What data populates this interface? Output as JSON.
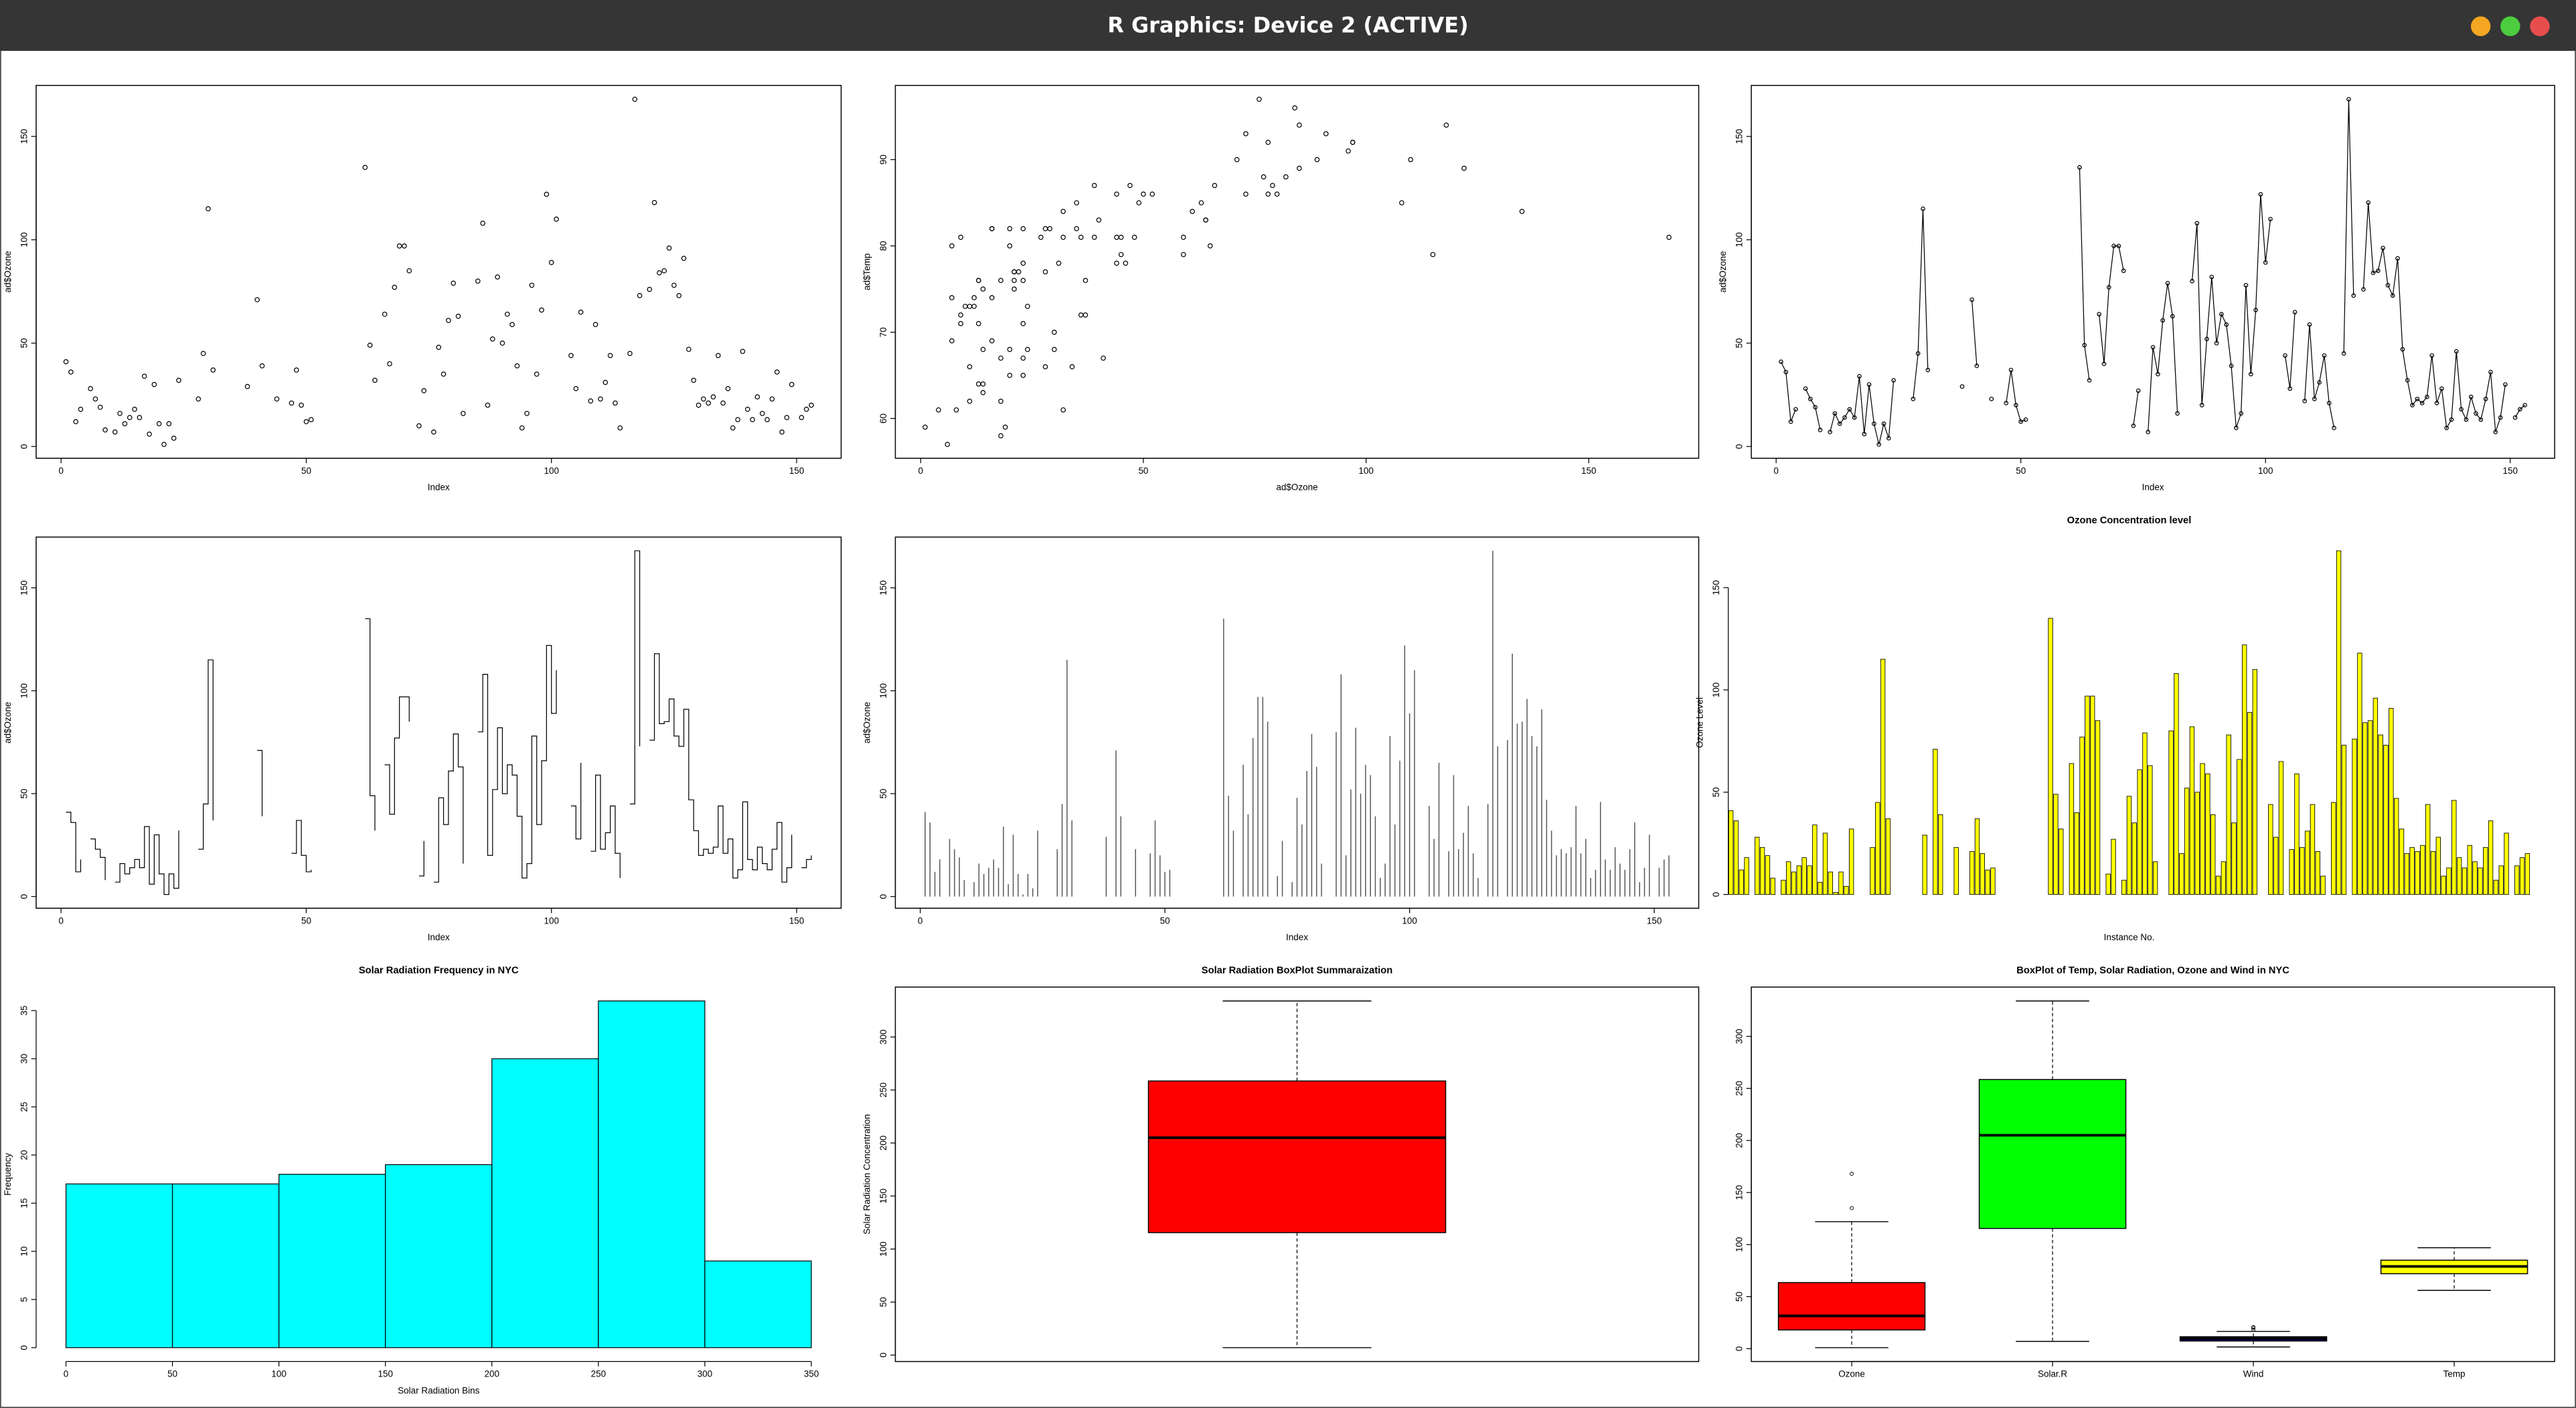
{
  "window": {
    "title": "R Graphics: Device 2 (ACTIVE)"
  },
  "chart_data": [
    {
      "type": "scatter",
      "xlabel": "Index",
      "ylabel": "ad$Ozone",
      "color": "#000000",
      "values": [
        41,
        36,
        12,
        18,
        null,
        28,
        23,
        19,
        8,
        null,
        7,
        16,
        11,
        14,
        18,
        14,
        34,
        6,
        30,
        11,
        1,
        11,
        4,
        32,
        null,
        null,
        null,
        23,
        45,
        115,
        37,
        null,
        null,
        null,
        null,
        null,
        null,
        29,
        null,
        71,
        39,
        null,
        null,
        23,
        null,
        null,
        21,
        37,
        20,
        12,
        13,
        null,
        null,
        null,
        null,
        null,
        null,
        null,
        null,
        null,
        null,
        135,
        49,
        32,
        null,
        64,
        40,
        77,
        97,
        97,
        85,
        null,
        10,
        27,
        null,
        7,
        48,
        35,
        61,
        79,
        63,
        16,
        null,
        null,
        80,
        108,
        20,
        52,
        82,
        50,
        64,
        59,
        39,
        9,
        16,
        78,
        35,
        66,
        122,
        89,
        110,
        null,
        null,
        44,
        28,
        65,
        null,
        22,
        59,
        23,
        31,
        44,
        21,
        9,
        null,
        45,
        168,
        73,
        null,
        76,
        118,
        84,
        85,
        96,
        78,
        73,
        91,
        47,
        32,
        20,
        23,
        21,
        24,
        44,
        21,
        28,
        9,
        13,
        46,
        18,
        13,
        24,
        16,
        13,
        23,
        36,
        7,
        14,
        30,
        null,
        14,
        18,
        20
      ],
      "xlim": [
        -5.08,
        159.08
      ],
      "ylim": [
        -5.68,
        174.68
      ],
      "xticks": [
        0,
        50,
        100,
        150
      ],
      "yticks": [
        0,
        50,
        100,
        150
      ]
    },
    {
      "type": "scatter",
      "xlabel": "ad$Ozone",
      "ylabel": "ad$Temp",
      "color": "#000000",
      "x": [
        41,
        36,
        12,
        18,
        28,
        23,
        19,
        8,
        7,
        16,
        11,
        14,
        18,
        14,
        34,
        6,
        30,
        11,
        1,
        11,
        4,
        32,
        23,
        45,
        115,
        37,
        29,
        71,
        39,
        23,
        21,
        37,
        20,
        12,
        13,
        135,
        49,
        32,
        64,
        40,
        77,
        97,
        97,
        85,
        10,
        27,
        7,
        48,
        35,
        61,
        79,
        63,
        16,
        80,
        108,
        20,
        52,
        82,
        50,
        64,
        59,
        39,
        9,
        16,
        78,
        35,
        66,
        122,
        89,
        110,
        44,
        28,
        65,
        22,
        59,
        23,
        31,
        44,
        21,
        9,
        45,
        168,
        73,
        76,
        118,
        84,
        85,
        96,
        78,
        73,
        91,
        47,
        32,
        20,
        23,
        21,
        24,
        44,
        21,
        28,
        9,
        13,
        46,
        18,
        13,
        24,
        16,
        13,
        23,
        36,
        7,
        14,
        30,
        14,
        18,
        20
      ],
      "values": [
        67,
        72,
        74,
        62,
        66,
        65,
        59,
        61,
        74,
        69,
        66,
        68,
        58,
        64,
        66,
        57,
        68,
        62,
        59,
        73,
        61,
        61,
        67,
        81,
        79,
        76,
        82,
        90,
        87,
        82,
        77,
        72,
        65,
        73,
        76,
        84,
        85,
        81,
        83,
        83,
        88,
        92,
        92,
        89,
        73,
        81,
        80,
        81,
        82,
        84,
        87,
        85,
        74,
        86,
        85,
        82,
        86,
        88,
        86,
        83,
        81,
        81,
        81,
        82,
        86,
        85,
        87,
        89,
        90,
        90,
        86,
        82,
        80,
        77,
        79,
        76,
        78,
        78,
        77,
        72,
        79,
        81,
        86,
        97,
        94,
        96,
        94,
        91,
        92,
        93,
        93,
        87,
        84,
        80,
        78,
        75,
        73,
        81,
        76,
        77,
        71,
        71,
        78,
        67,
        76,
        68,
        82,
        64,
        71,
        81,
        69,
        63,
        70,
        75,
        76,
        68
      ],
      "xlim": [
        -5.68,
        174.68
      ],
      "ylim": [
        55.4,
        98.6
      ],
      "xticks": [
        0,
        50,
        100,
        150
      ],
      "yticks": [
        60,
        70,
        80,
        90
      ]
    },
    {
      "type": "line",
      "markers": true,
      "xlabel": "Index",
      "ylabel": "ad$Ozone",
      "color": "#000000",
      "values": [
        41,
        36,
        12,
        18,
        null,
        28,
        23,
        19,
        8,
        null,
        7,
        16,
        11,
        14,
        18,
        14,
        34,
        6,
        30,
        11,
        1,
        11,
        4,
        32,
        null,
        null,
        null,
        23,
        45,
        115,
        37,
        null,
        null,
        null,
        null,
        null,
        null,
        29,
        null,
        71,
        39,
        null,
        null,
        23,
        null,
        null,
        21,
        37,
        20,
        12,
        13,
        null,
        null,
        null,
        null,
        null,
        null,
        null,
        null,
        null,
        null,
        135,
        49,
        32,
        null,
        64,
        40,
        77,
        97,
        97,
        85,
        null,
        10,
        27,
        null,
        7,
        48,
        35,
        61,
        79,
        63,
        16,
        null,
        null,
        80,
        108,
        20,
        52,
        82,
        50,
        64,
        59,
        39,
        9,
        16,
        78,
        35,
        66,
        122,
        89,
        110,
        null,
        null,
        44,
        28,
        65,
        null,
        22,
        59,
        23,
        31,
        44,
        21,
        9,
        null,
        45,
        168,
        73,
        null,
        76,
        118,
        84,
        85,
        96,
        78,
        73,
        91,
        47,
        32,
        20,
        23,
        21,
        24,
        44,
        21,
        28,
        9,
        13,
        46,
        18,
        13,
        24,
        16,
        13,
        23,
        36,
        7,
        14,
        30,
        null,
        14,
        18,
        20
      ],
      "xlim": [
        -5.08,
        159.08
      ],
      "ylim": [
        -5.68,
        174.68
      ],
      "xticks": [
        0,
        50,
        100,
        150
      ],
      "yticks": [
        0,
        50,
        100,
        150
      ]
    },
    {
      "type": "step",
      "xlabel": "Index",
      "ylabel": "ad$Ozone",
      "color": "#000000",
      "values": [
        41,
        36,
        12,
        18,
        null,
        28,
        23,
        19,
        8,
        null,
        7,
        16,
        11,
        14,
        18,
        14,
        34,
        6,
        30,
        11,
        1,
        11,
        4,
        32,
        null,
        null,
        null,
        23,
        45,
        115,
        37,
        null,
        null,
        null,
        null,
        null,
        null,
        29,
        null,
        71,
        39,
        null,
        null,
        23,
        null,
        null,
        21,
        37,
        20,
        12,
        13,
        null,
        null,
        null,
        null,
        null,
        null,
        null,
        null,
        null,
        null,
        135,
        49,
        32,
        null,
        64,
        40,
        77,
        97,
        97,
        85,
        null,
        10,
        27,
        null,
        7,
        48,
        35,
        61,
        79,
        63,
        16,
        null,
        null,
        80,
        108,
        20,
        52,
        82,
        50,
        64,
        59,
        39,
        9,
        16,
        78,
        35,
        66,
        122,
        89,
        110,
        null,
        null,
        44,
        28,
        65,
        null,
        22,
        59,
        23,
        31,
        44,
        21,
        9,
        null,
        45,
        168,
        73,
        null,
        76,
        118,
        84,
        85,
        96,
        78,
        73,
        91,
        47,
        32,
        20,
        23,
        21,
        24,
        44,
        21,
        28,
        9,
        13,
        46,
        18,
        13,
        24,
        16,
        13,
        23,
        36,
        7,
        14,
        30,
        null,
        14,
        18,
        20
      ],
      "xlim": [
        -5.08,
        159.08
      ],
      "ylim": [
        -5.68,
        174.68
      ],
      "xticks": [
        0,
        50,
        100,
        150
      ],
      "yticks": [
        0,
        50,
        100,
        150
      ]
    },
    {
      "type": "stem",
      "xlabel": "Index",
      "ylabel": "ad$Ozone",
      "color": "#555555",
      "values": [
        41,
        36,
        12,
        18,
        null,
        28,
        23,
        19,
        8,
        null,
        7,
        16,
        11,
        14,
        18,
        14,
        34,
        6,
        30,
        11,
        1,
        11,
        4,
        32,
        null,
        null,
        null,
        23,
        45,
        115,
        37,
        null,
        null,
        null,
        null,
        null,
        null,
        29,
        null,
        71,
        39,
        null,
        null,
        23,
        null,
        null,
        21,
        37,
        20,
        12,
        13,
        null,
        null,
        null,
        null,
        null,
        null,
        null,
        null,
        null,
        null,
        135,
        49,
        32,
        null,
        64,
        40,
        77,
        97,
        97,
        85,
        null,
        10,
        27,
        null,
        7,
        48,
        35,
        61,
        79,
        63,
        16,
        null,
        null,
        80,
        108,
        20,
        52,
        82,
        50,
        64,
        59,
        39,
        9,
        16,
        78,
        35,
        66,
        122,
        89,
        110,
        null,
        null,
        44,
        28,
        65,
        null,
        22,
        59,
        23,
        31,
        44,
        21,
        9,
        null,
        45,
        168,
        73,
        null,
        76,
        118,
        84,
        85,
        96,
        78,
        73,
        91,
        47,
        32,
        20,
        23,
        21,
        24,
        44,
        21,
        28,
        9,
        13,
        46,
        18,
        13,
        24,
        16,
        13,
        23,
        36,
        7,
        14,
        30,
        null,
        14,
        18,
        20
      ],
      "xlim": [
        -5.08,
        159.08
      ],
      "ylim": [
        -5.68,
        174.68
      ],
      "xticks": [
        0,
        50,
        100,
        150
      ],
      "yticks": [
        0,
        50,
        100,
        150
      ]
    },
    {
      "type": "bar",
      "title": "Ozone Concentration level",
      "xlabel": "Instance No.",
      "ylabel": "Ozone Level",
      "color": "#ffff00",
      "values": [
        41,
        36,
        12,
        18,
        null,
        28,
        23,
        19,
        8,
        null,
        7,
        16,
        11,
        14,
        18,
        14,
        34,
        6,
        30,
        11,
        1,
        11,
        4,
        32,
        null,
        null,
        null,
        23,
        45,
        115,
        37,
        null,
        null,
        null,
        null,
        null,
        null,
        29,
        null,
        71,
        39,
        null,
        null,
        23,
        null,
        null,
        21,
        37,
        20,
        12,
        13,
        null,
        null,
        null,
        null,
        null,
        null,
        null,
        null,
        null,
        null,
        135,
        49,
        32,
        null,
        64,
        40,
        77,
        97,
        97,
        85,
        null,
        10,
        27,
        null,
        7,
        48,
        35,
        61,
        79,
        63,
        16,
        null,
        null,
        80,
        108,
        20,
        52,
        82,
        50,
        64,
        59,
        39,
        9,
        16,
        78,
        35,
        66,
        122,
        89,
        110,
        null,
        null,
        44,
        28,
        65,
        null,
        22,
        59,
        23,
        31,
        44,
        21,
        9,
        null,
        45,
        168,
        73,
        null,
        76,
        118,
        84,
        85,
        96,
        78,
        73,
        91,
        47,
        32,
        20,
        23,
        21,
        24,
        44,
        21,
        28,
        9,
        13,
        46,
        18,
        13,
        24,
        16,
        13,
        23,
        36,
        7,
        14,
        30,
        null,
        14,
        18,
        20
      ],
      "ylim": [
        -6.72,
        174.72
      ],
      "yticks": [
        0,
        50,
        100,
        150
      ]
    },
    {
      "type": "histogram",
      "title": "Solar Radiation Frequency in NYC",
      "xlabel": "Solar Radiation Bins",
      "ylabel": "Frequency",
      "color": "#00ffff",
      "bins": [
        0,
        50,
        100,
        150,
        200,
        250,
        300,
        350
      ],
      "values": [
        17,
        17,
        18,
        19,
        30,
        36,
        9
      ],
      "xlim": [
        -14,
        364
      ],
      "ylim": [
        -1.44,
        37.44
      ],
      "xticks": [
        0,
        50,
        100,
        150,
        200,
        250,
        300,
        350
      ],
      "yticks": [
        0,
        5,
        10,
        15,
        20,
        25,
        30,
        35
      ]
    },
    {
      "type": "box",
      "title": "Solar Radiation BoxPlot Summaraization",
      "ylabel": "Solar Radiation Concentration",
      "colors": [
        "#ff0000"
      ],
      "boxes": [
        {
          "min": 7,
          "q1": 115.5,
          "median": 205,
          "q3": 258.5,
          "max": 334
        }
      ],
      "ylim": [
        -6.08,
        347.08
      ],
      "yticks": [
        0,
        50,
        100,
        150,
        200,
        250,
        300
      ]
    },
    {
      "type": "box",
      "title": "BoxPlot of Temp, Solar Radiation, Ozone and Wind in NYC",
      "categories": [
        "Ozone",
        "Solar.R",
        "Wind",
        "Temp"
      ],
      "colors": [
        "#ff0000",
        "#00ff00",
        "#00008b",
        "#ffff00"
      ],
      "boxes": [
        {
          "min": 1,
          "q1": 18,
          "median": 31.5,
          "q3": 63.5,
          "max": 122,
          "outliers": [
            135,
            168
          ]
        },
        {
          "min": 7,
          "q1": 115.5,
          "median": 205,
          "q3": 258.5,
          "max": 334
        },
        {
          "min": 1.7,
          "q1": 7.4,
          "median": 9.7,
          "q3": 11.5,
          "max": 16.6,
          "outliers": [
            20.1,
            18.4,
            20.7
          ]
        },
        {
          "min": 56,
          "q1": 72,
          "median": 79,
          "q3": 85,
          "max": 97
        }
      ],
      "ylim": [
        -12.32,
        347.32
      ],
      "yticks": [
        0,
        50,
        100,
        150,
        200,
        250,
        300
      ]
    }
  ]
}
